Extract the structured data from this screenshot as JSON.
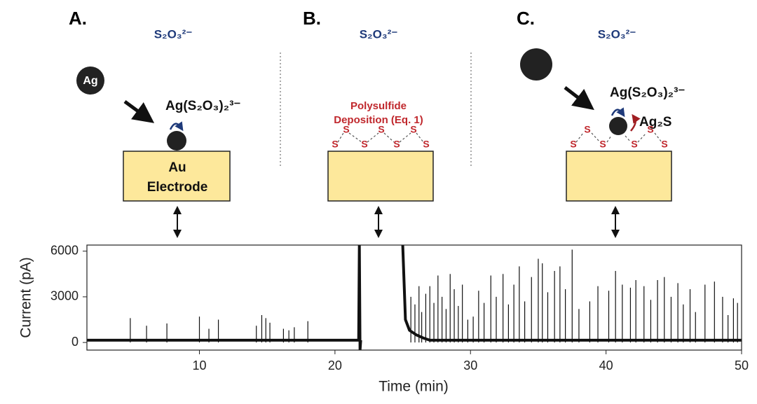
{
  "panels": [
    {
      "label": "A.",
      "anion": "S₂O₃²⁻",
      "particle": "Ag",
      "complex": "Ag(S₂O₃)₂³⁻",
      "electrode": [
        "Au",
        "Electrode"
      ]
    },
    {
      "label": "B.",
      "anion": "S₂O₃²⁻",
      "note": [
        "Polysulfide",
        "Deposition (Eq. 1)"
      ]
    },
    {
      "label": "C.",
      "anion": "S₂O₃²⁻",
      "complex": "Ag(S₂O₃)₂³⁻",
      "product": "Ag₂S"
    }
  ],
  "sulfur_label": "S",
  "chart_data": {
    "type": "line",
    "xlabel": "Time (min)",
    "ylabel": "Current (pA)",
    "xlim": [
      1.7,
      50
    ],
    "ylim": [
      -500,
      6400
    ],
    "xticks": [
      10,
      20,
      30,
      40,
      50
    ],
    "yticks": [
      0,
      3000,
      6000
    ],
    "series": [
      {
        "style": "line",
        "color": "#111111",
        "x": [
          1.7,
          21.7,
          21.75,
          21.8,
          21.85,
          21.9,
          23.5,
          25.0,
          25.2,
          25.5,
          26.0,
          26.5,
          27.0,
          50
        ],
        "values": [
          150,
          150,
          150,
          6400,
          -500,
          150,
          null,
          6400,
          1500,
          800,
          500,
          300,
          150,
          150
        ]
      },
      {
        "style": "stem",
        "color": "#111111",
        "x": [
          4.9,
          6.1,
          7.6,
          10.0,
          10.7,
          11.4,
          14.2,
          14.6,
          14.9,
          15.2,
          16.2,
          16.6,
          17.0,
          18.0,
          25.6,
          25.9,
          26.2,
          26.4,
          26.7,
          27.0,
          27.3,
          27.6,
          27.9,
          28.2,
          28.5,
          28.8,
          29.1,
          29.4,
          29.8,
          30.2,
          30.6,
          31.0,
          31.5,
          31.9,
          32.4,
          32.8,
          33.2,
          33.6,
          34.0,
          34.5,
          35.0,
          35.3,
          35.7,
          36.2,
          36.6,
          37.0,
          37.5,
          38.0,
          38.8,
          39.4,
          40.2,
          40.7,
          41.2,
          41.8,
          42.2,
          42.8,
          43.3,
          43.8,
          44.3,
          44.8,
          45.3,
          45.7,
          46.2,
          46.6,
          47.3,
          48.0,
          48.6,
          49.0,
          49.4,
          49.7
        ],
        "values": [
          1600,
          1100,
          1250,
          1700,
          900,
          1500,
          1100,
          1800,
          1600,
          1300,
          900,
          800,
          1000,
          1400,
          3000,
          2500,
          3700,
          2000,
          3200,
          3700,
          2600,
          4400,
          3000,
          2200,
          4500,
          3500,
          2400,
          3800,
          1500,
          1700,
          3400,
          2600,
          4400,
          3000,
          4500,
          2500,
          3800,
          5000,
          2700,
          4300,
          5500,
          5200,
          3300,
          4700,
          5000,
          3500,
          6100,
          2200,
          2700,
          3700,
          3400,
          4700,
          3800,
          3600,
          4100,
          3700,
          2800,
          4100,
          4300,
          3000,
          3900,
          2500,
          3500,
          2000,
          3800,
          4000,
          3000,
          1800,
          2900,
          2600
        ]
      }
    ]
  }
}
